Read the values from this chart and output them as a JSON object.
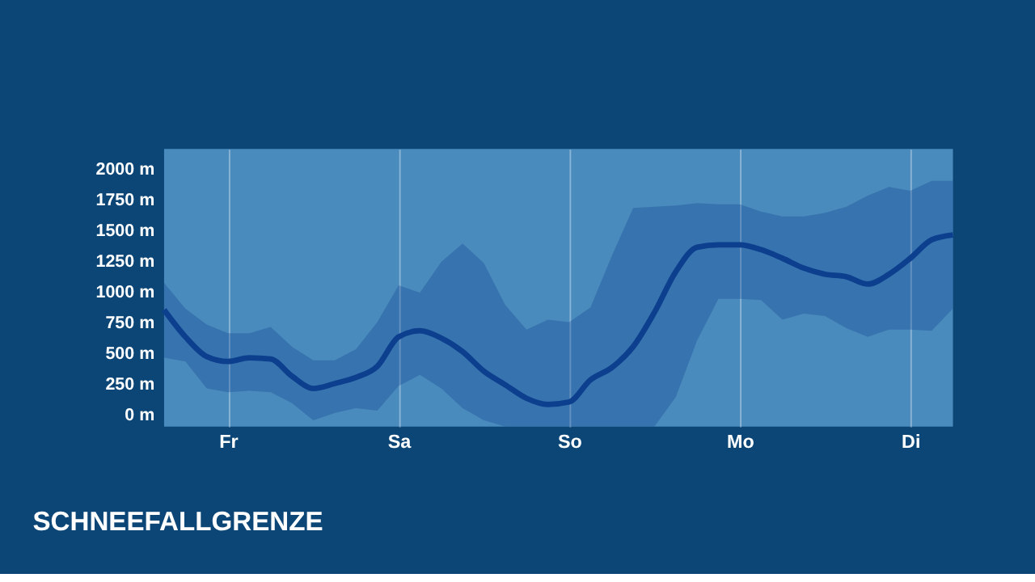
{
  "chart_data": {
    "type": "line",
    "title": "SCHNEEFALLGRENZE",
    "categories": [
      null,
      null,
      null,
      "Fr",
      null,
      null,
      null,
      null,
      null,
      null,
      null,
      "Sa",
      null,
      null,
      null,
      null,
      null,
      null,
      null,
      "So",
      null,
      null,
      null,
      null,
      null,
      null,
      null,
      "Mo",
      null,
      null,
      null,
      null,
      null,
      null,
      null,
      "Di",
      null,
      null
    ],
    "series": [
      {
        "color": "#0d3f8f",
        "values": [
          860,
          640,
          480,
          440,
          470,
          460,
          320,
          220,
          260,
          310,
          400,
          640,
          690,
          630,
          520,
          360,
          250,
          140,
          90,
          110,
          290,
          390,
          560,
          840,
          1170,
          1370,
          1390,
          1390,
          1350,
          1280,
          1200,
          1150,
          1130,
          1070,
          1150,
          1280,
          1430,
          1470
        ],
        "lower": [
          470,
          440,
          220,
          190,
          200,
          190,
          100,
          -40,
          20,
          60,
          40,
          240,
          330,
          220,
          60,
          -40,
          -90,
          -90,
          -90,
          -90,
          -90,
          -90,
          -90,
          -90,
          150,
          610,
          950,
          950,
          940,
          780,
          830,
          810,
          710,
          640,
          700,
          700,
          690,
          870
        ],
        "upper": [
          1080,
          870,
          740,
          670,
          670,
          720,
          560,
          450,
          450,
          540,
          760,
          1060,
          1000,
          1250,
          1400,
          1240,
          900,
          700,
          780,
          760,
          880,
          1300,
          1690,
          1700,
          1710,
          1730,
          1720,
          1720,
          1660,
          1620,
          1620,
          1650,
          1700,
          1790,
          1860,
          1830,
          1910,
          1910
        ]
      }
    ],
    "ylim": [
      -90,
      2170
    ],
    "yticks": [
      {
        "value": 0,
        "label": "0 m"
      },
      {
        "value": 250,
        "label": "250 m"
      },
      {
        "value": 500,
        "label": "500 m"
      },
      {
        "value": 750,
        "label": "750 m"
      },
      {
        "value": 1000,
        "label": "1000 m"
      },
      {
        "value": 1250,
        "label": "1250 m"
      },
      {
        "value": 1500,
        "label": "1500 m"
      },
      {
        "value": 1750,
        "label": "1750 m"
      },
      {
        "value": 2000,
        "label": "2000 m"
      }
    ],
    "grid": "x",
    "line_style": "solid",
    "marker": "none"
  }
}
